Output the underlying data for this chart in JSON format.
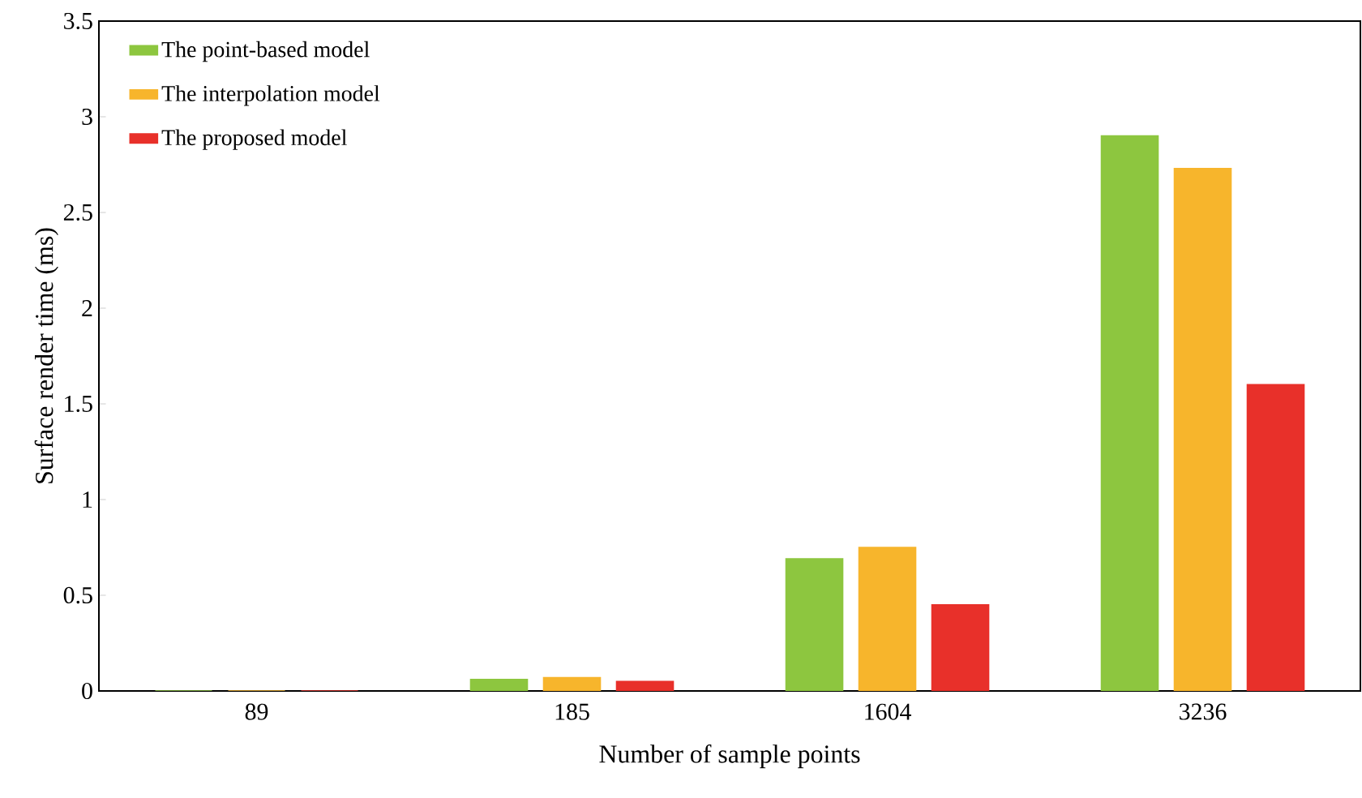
{
  "chart_data": {
    "type": "bar",
    "xlabel": "Number of sample points",
    "ylabel": "Surface render time (ms)",
    "categories": [
      "89",
      "185",
      "1604",
      "3236"
    ],
    "series": [
      {
        "name": "The point-based model",
        "color": "#8dc63f",
        "values": [
          0,
          0.06,
          0.69,
          2.9
        ]
      },
      {
        "name": "The interpolation model",
        "color": "#f7b52c",
        "values": [
          0,
          0.07,
          0.75,
          2.73
        ]
      },
      {
        "name": "The proposed model",
        "color": "#e8302a",
        "values": [
          0,
          0.05,
          0.45,
          1.6
        ]
      }
    ],
    "ylim": [
      0,
      3.5
    ],
    "yticks": [
      0,
      0.5,
      1,
      1.5,
      2,
      2.5,
      3,
      3.5
    ],
    "legend": "top left",
    "grid": false
  }
}
